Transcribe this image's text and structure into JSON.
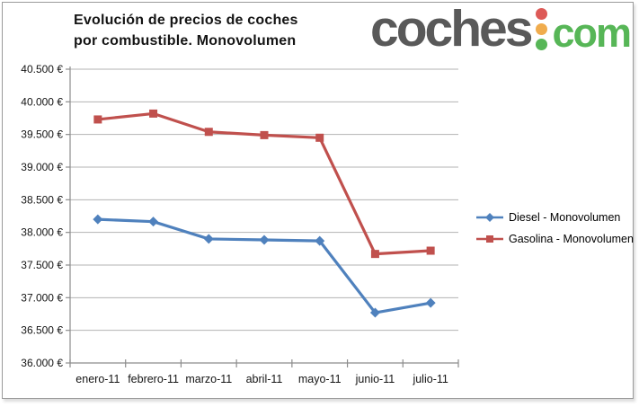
{
  "logo": {
    "word": "coches",
    "tld": "com",
    "word_color": "#595959",
    "tld_color": "#57b657",
    "dot_colors": [
      "#dd5a57",
      "#f0ac4d",
      "#57b657"
    ]
  },
  "chart_data": {
    "type": "line",
    "title": "Evolución de precios de coches por combustible. Monovolumen",
    "title_lines": [
      "Evolución de precios de coches",
      "por combustible. Monovolumen"
    ],
    "categories": [
      "enero-11",
      "febrero-11",
      "marzo-11",
      "abril-11",
      "mayo-11",
      "junio-11",
      "julio-11"
    ],
    "series": [
      {
        "name": "Diesel - Monovolumen",
        "color": "#4F81BD",
        "marker": "diamond",
        "values": [
          38200,
          38165,
          37900,
          37885,
          37870,
          36770,
          36920
        ]
      },
      {
        "name": "Gasolina - Monovolumen",
        "color": "#C0504D",
        "marker": "square",
        "values": [
          39730,
          39820,
          39540,
          39490,
          39450,
          37670,
          37720
        ]
      }
    ],
    "y_axis": {
      "min": 36000,
      "max": 40500,
      "step": 500,
      "ticks": [
        {
          "value": 36000,
          "label": "36.000 €"
        },
        {
          "value": 36500,
          "label": "36.500 €"
        },
        {
          "value": 37000,
          "label": "37.000 €"
        },
        {
          "value": 37500,
          "label": "37.500 €"
        },
        {
          "value": 38000,
          "label": "38.000 €"
        },
        {
          "value": 38500,
          "label": "38.500 €"
        },
        {
          "value": 39000,
          "label": "39.000 €"
        },
        {
          "value": 39500,
          "label": "39.500 €"
        },
        {
          "value": 40000,
          "label": "40.000 €"
        },
        {
          "value": 40500,
          "label": "40.500 €"
        }
      ]
    },
    "grid": true,
    "grid_color": "#b3b3b3",
    "axis_color": "#8c8c8c",
    "legend_position": "right"
  }
}
